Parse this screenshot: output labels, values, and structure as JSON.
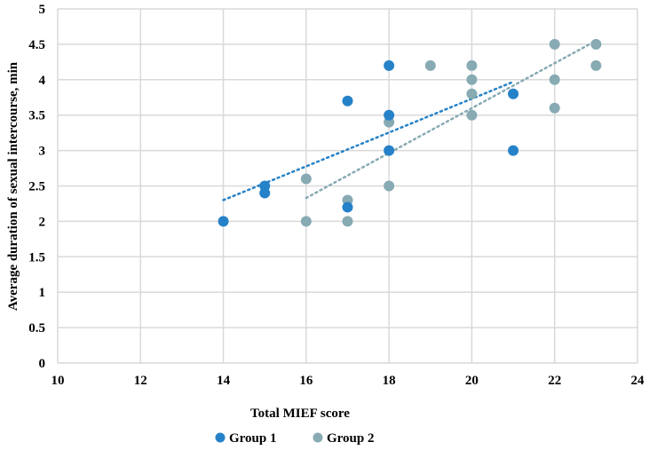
{
  "chart_data": {
    "type": "scatter",
    "xlabel": "Total MIEF score",
    "ylabel": "Average duration of sexual intercourse, min",
    "xlim": [
      10,
      24
    ],
    "ylim": [
      0,
      5
    ],
    "xticks": [
      10,
      12,
      14,
      16,
      18,
      20,
      22,
      24
    ],
    "yticks": [
      0,
      0.5,
      1,
      1.5,
      2,
      2.5,
      3,
      3.5,
      4,
      4.5,
      5
    ],
    "xtick_labels": [
      "10",
      "12",
      "14",
      "16",
      "18",
      "20",
      "22",
      "24"
    ],
    "ytick_labels": [
      "0",
      "0.5",
      "1",
      "1.5",
      "2",
      "2.5",
      "3",
      "3.5",
      "4",
      "4.5",
      "5"
    ],
    "grid": true,
    "legend_position": "bottom",
    "series": [
      {
        "name": "Group 1",
        "color": "#2682C8",
        "points": [
          [
            14,
            2
          ],
          [
            15,
            2.5
          ],
          [
            15,
            2.4
          ],
          [
            17,
            3.7
          ],
          [
            17,
            2.2
          ],
          [
            18,
            4.2
          ],
          [
            18,
            3.5
          ],
          [
            18,
            3
          ],
          [
            21,
            3.8
          ],
          [
            21,
            3
          ]
        ],
        "trendline": {
          "type": "linear",
          "x_range": [
            14,
            21
          ],
          "y_range": [
            2.3,
            3.97
          ],
          "style": "dotted"
        }
      },
      {
        "name": "Group 2",
        "color": "#87AAB3",
        "points": [
          [
            16,
            2.6
          ],
          [
            16,
            2
          ],
          [
            17,
            2.3
          ],
          [
            17,
            2
          ],
          [
            18,
            3.4
          ],
          [
            18,
            2.5
          ],
          [
            19,
            4.2
          ],
          [
            20,
            4.2
          ],
          [
            20,
            4
          ],
          [
            20,
            3.8
          ],
          [
            20,
            3.5
          ],
          [
            22,
            4.5
          ],
          [
            22,
            4
          ],
          [
            22,
            3.6
          ],
          [
            23,
            4.5
          ],
          [
            23,
            4.2
          ]
        ],
        "trendline": {
          "type": "linear",
          "x_range": [
            16,
            23
          ],
          "y_range": [
            2.33,
            4.55
          ],
          "style": "dotted"
        }
      }
    ]
  }
}
